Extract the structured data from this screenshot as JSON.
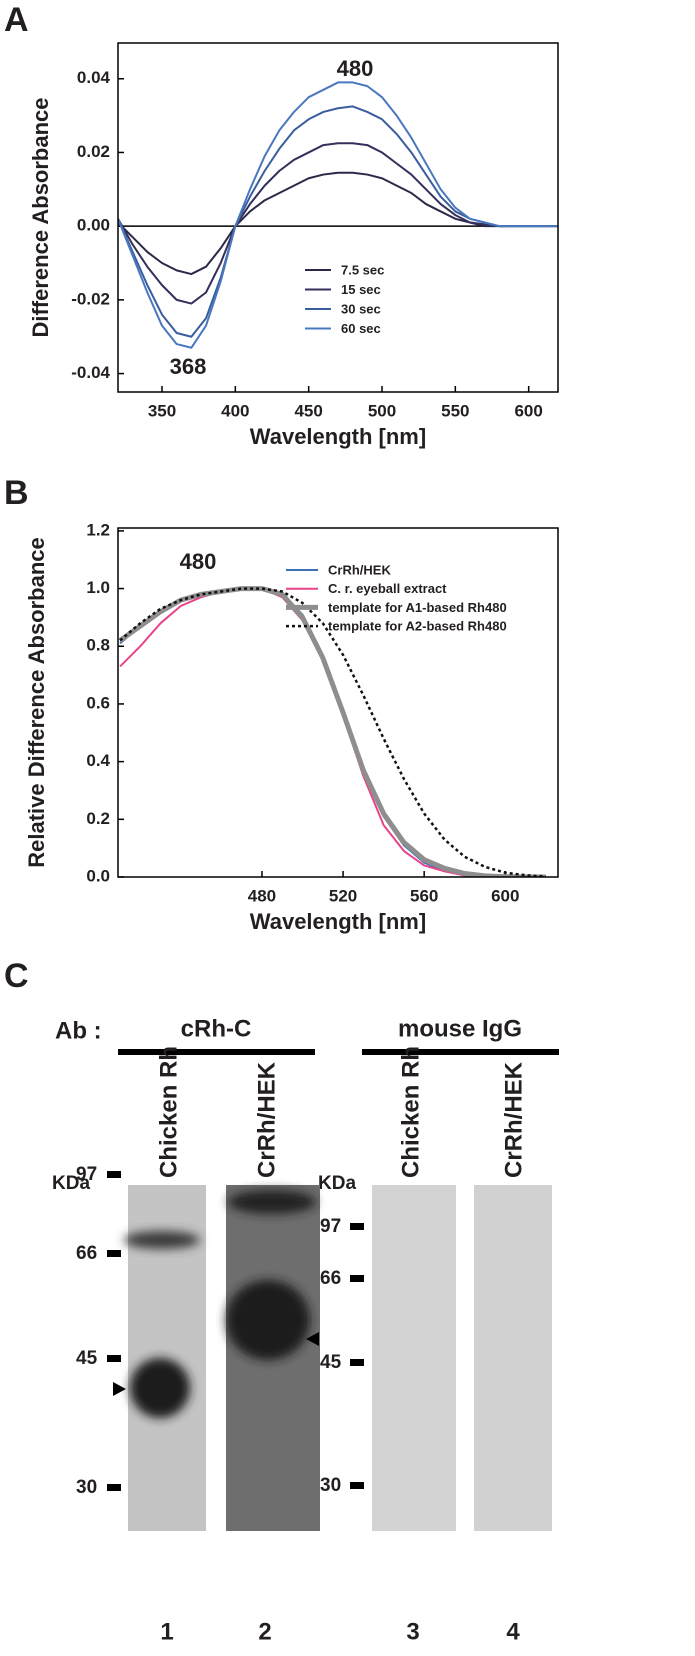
{
  "panels": [
    "A",
    "B",
    "C"
  ],
  "chart_data": [
    {
      "type": "line",
      "xlabel": "Wavelength [nm]",
      "ylabel": "Difference Absorbance",
      "xlim": [
        320,
        620
      ],
      "ylim": [
        -0.045,
        0.0497
      ],
      "xticks": [
        350,
        400,
        450,
        500,
        550,
        600
      ],
      "yticks": [
        -0.04,
        -0.02,
        {
          "value": 0,
          "label": "0.00"
        },
        0.02,
        0.04
      ],
      "zero_line": true,
      "annotations": [
        "480",
        "368"
      ],
      "x": [
        320,
        330,
        340,
        350,
        360,
        370,
        380,
        390,
        400,
        410,
        420,
        430,
        440,
        450,
        460,
        470,
        480,
        490,
        500,
        510,
        520,
        530,
        540,
        550,
        560,
        570,
        580,
        590,
        600,
        610,
        620
      ],
      "series": [
        {
          "name": "7.5 sec",
          "color": "#2c2848",
          "values": [
            0.001,
            -0.003,
            -0.007,
            -0.01,
            -0.012,
            -0.013,
            -0.011,
            -0.006,
            0,
            0.004,
            0.007,
            0.009,
            0.011,
            0.013,
            0.014,
            0.0145,
            0.0145,
            0.014,
            0.013,
            0.011,
            0.009,
            0.006,
            0.004,
            0.002,
            0.001,
            0,
            0,
            0,
            0,
            0,
            0
          ]
        },
        {
          "name": "15 sec",
          "color": "#33305c",
          "values": [
            0.002,
            -0.005,
            -0.011,
            -0.016,
            -0.02,
            -0.021,
            -0.018,
            -0.01,
            0,
            0.006,
            0.011,
            0.015,
            0.018,
            0.02,
            0.022,
            0.0225,
            0.0225,
            0.022,
            0.02,
            0.017,
            0.014,
            0.01,
            0.006,
            0.003,
            0.001,
            0.0005,
            0,
            0,
            0,
            0,
            0
          ]
        },
        {
          "name": "30 sec",
          "color": "#3a5d9e",
          "values": [
            0.002,
            -0.007,
            -0.016,
            -0.024,
            -0.029,
            -0.03,
            -0.025,
            -0.014,
            0,
            0.008,
            0.015,
            0.021,
            0.026,
            0.029,
            0.031,
            0.032,
            0.0325,
            0.031,
            0.029,
            0.025,
            0.02,
            0.014,
            0.008,
            0.004,
            0.002,
            0.001,
            0,
            0,
            0,
            0,
            0
          ]
        },
        {
          "name": "60 sec",
          "color": "#4a78bf",
          "values": [
            0.002,
            -0.008,
            -0.018,
            -0.027,
            -0.032,
            -0.033,
            -0.027,
            -0.015,
            0,
            0.01,
            0.019,
            0.026,
            0.031,
            0.035,
            0.037,
            0.039,
            0.039,
            0.038,
            0.035,
            0.03,
            0.024,
            0.017,
            0.01,
            0.005,
            0.002,
            0.001,
            0,
            0,
            0,
            0,
            0
          ]
        }
      ]
    },
    {
      "type": "line",
      "xlabel": "Wavelength [nm]",
      "ylabel": "Relative Difference Absorbance",
      "xlim": [
        409,
        626
      ],
      "ylim": [
        0,
        1.21
      ],
      "xticks": [
        480,
        520,
        560,
        600
      ],
      "yticks": [
        {
          "value": 0,
          "label": "0.0"
        },
        0.2,
        0.4,
        0.6,
        0.8,
        {
          "value": 1,
          "label": "1.0"
        },
        1.2
      ],
      "zero_line": false,
      "annotations": [
        "480"
      ],
      "x": [
        410,
        420,
        430,
        440,
        450,
        460,
        470,
        480,
        490,
        500,
        510,
        520,
        530,
        540,
        550,
        560,
        570,
        580,
        590,
        600,
        610,
        620
      ],
      "series": [
        {
          "name": "CrRh/HEK",
          "color": "#3c6fb4",
          "width": 2,
          "style": "solid",
          "values": [
            0.81,
            0.87,
            0.92,
            0.96,
            0.98,
            0.99,
            1.0,
            1.0,
            0.98,
            0.91,
            0.77,
            0.58,
            0.37,
            0.21,
            0.11,
            0.05,
            0.02,
            0.01,
            0.004,
            0.001,
            0,
            0
          ]
        },
        {
          "name": "C. r. eyeball extract",
          "color": "#e8448c",
          "width": 2,
          "style": "solid",
          "values": [
            0.73,
            0.8,
            0.88,
            0.94,
            0.97,
            0.99,
            1.0,
            1.0,
            0.97,
            0.89,
            0.75,
            0.56,
            0.35,
            0.18,
            0.09,
            0.04,
            0.02,
            0.005,
            0,
            0,
            0,
            0
          ]
        },
        {
          "name": "template for A1-based Rh480",
          "color": "#8e8e8e",
          "width": 5,
          "style": "solid",
          "values": [
            0.82,
            0.87,
            0.92,
            0.96,
            0.98,
            0.99,
            1.0,
            1.0,
            0.98,
            0.9,
            0.76,
            0.57,
            0.37,
            0.22,
            0.12,
            0.06,
            0.03,
            0.012,
            0.004,
            0.001,
            0,
            0
          ]
        },
        {
          "name": "template for A2-based Rh480",
          "color": "#111111",
          "width": 2.5,
          "style": "dotted",
          "values": [
            0.82,
            0.88,
            0.93,
            0.96,
            0.98,
            0.99,
            1.0,
            1.0,
            0.99,
            0.95,
            0.88,
            0.77,
            0.63,
            0.48,
            0.34,
            0.22,
            0.13,
            0.07,
            0.035,
            0.015,
            0.006,
            0.002
          ]
        }
      ]
    }
  ],
  "blot": {
    "ab_label": "Ab :",
    "groups": [
      {
        "antibody": "cRh-C",
        "lanes": [
          "Chicken Rh",
          "CrRh/HEK"
        ]
      },
      {
        "antibody": "mouse IgG",
        "lanes": [
          "Chicken Rh",
          "CrRh/HEK"
        ]
      }
    ],
    "markers": [
      {
        "unit": "KDa",
        "ladder": [
          97,
          66,
          45,
          30
        ]
      },
      {
        "unit": "KDa",
        "ladder": [
          97,
          66,
          45,
          30
        ]
      }
    ],
    "lane_numbers": [
      1,
      2,
      3,
      4
    ]
  }
}
